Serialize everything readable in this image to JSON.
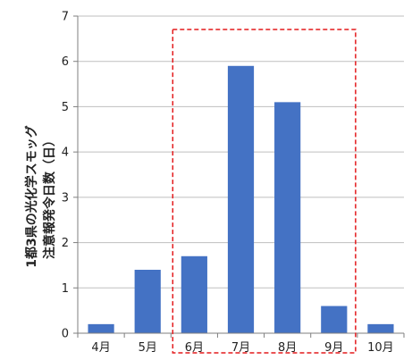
{
  "chart_data": {
    "type": "bar",
    "categories": [
      "4月",
      "5月",
      "6月",
      "7月",
      "8月",
      "9月",
      "10月"
    ],
    "values": [
      0.2,
      1.4,
      1.7,
      5.9,
      5.1,
      0.6,
      0.2
    ],
    "title": "",
    "xlabel": "",
    "ylabel_lines": [
      "1都3県の光化学スモッグ",
      "注意報発令日数（日）"
    ],
    "ylim": [
      0,
      7
    ],
    "yticks": [
      0,
      1,
      2,
      3,
      4,
      5,
      6,
      7
    ],
    "grid": true,
    "highlight_range": [
      "6月",
      "9月"
    ],
    "colors": {
      "bar": "#4472c4",
      "grid": "#bfbfbf",
      "axis": "#7f7f7f",
      "highlight_border": "#e31a1c"
    }
  }
}
